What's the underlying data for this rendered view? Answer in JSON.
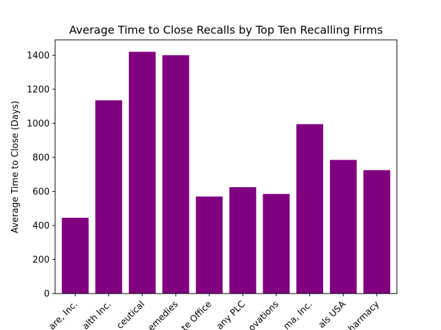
{
  "chart_data": {
    "type": "bar",
    "title": "Average Time to Close Recalls by Top Ten Recalling Firms",
    "xlabel": "",
    "ylabel": "Average Time to Close (Days)",
    "ylim": [
      0,
      1490
    ],
    "yticks": [
      0,
      200,
      400,
      600,
      800,
      1000,
      1200,
      1400
    ],
    "ytick_labels": [
      "0",
      "200",
      "400",
      "600",
      "800",
      "1000",
      "1200",
      "1400"
    ],
    "categories": [
      "are, Inc.",
      "alth Inc.",
      "ceutical",
      "emedies",
      "te Office",
      "any PLC",
      "ovations",
      "ma, Inc.",
      "als USA",
      "harmacy"
    ],
    "values": [
      445,
      1135,
      1420,
      1400,
      570,
      625,
      585,
      995,
      785,
      725
    ],
    "bar_color": "#800080",
    "grid": false,
    "legend": "none"
  }
}
